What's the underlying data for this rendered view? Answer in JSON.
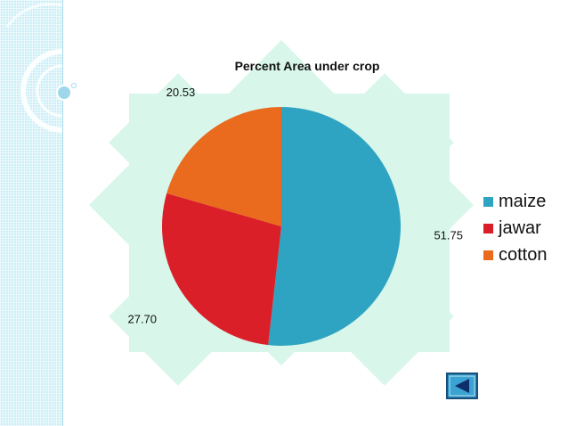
{
  "chart_data": {
    "type": "pie",
    "title": "Percent Area under crop",
    "categories": [
      "maize",
      "jawar",
      "cotton"
    ],
    "values": [
      51.75,
      27.7,
      20.53
    ],
    "value_labels": [
      "51.75",
      "27.70",
      "20.53"
    ],
    "colors": [
      "#2fa4c2",
      "#db1f29",
      "#ea6a1e"
    ],
    "legend": "right",
    "start": "12 o'clock",
    "direction": "clockwise"
  },
  "navigation": {
    "back_icon": "back-arrow-icon"
  },
  "theme": {
    "accent": "#2fa4c2",
    "strip": "#cdeef6",
    "star": "#d8f6ea"
  }
}
